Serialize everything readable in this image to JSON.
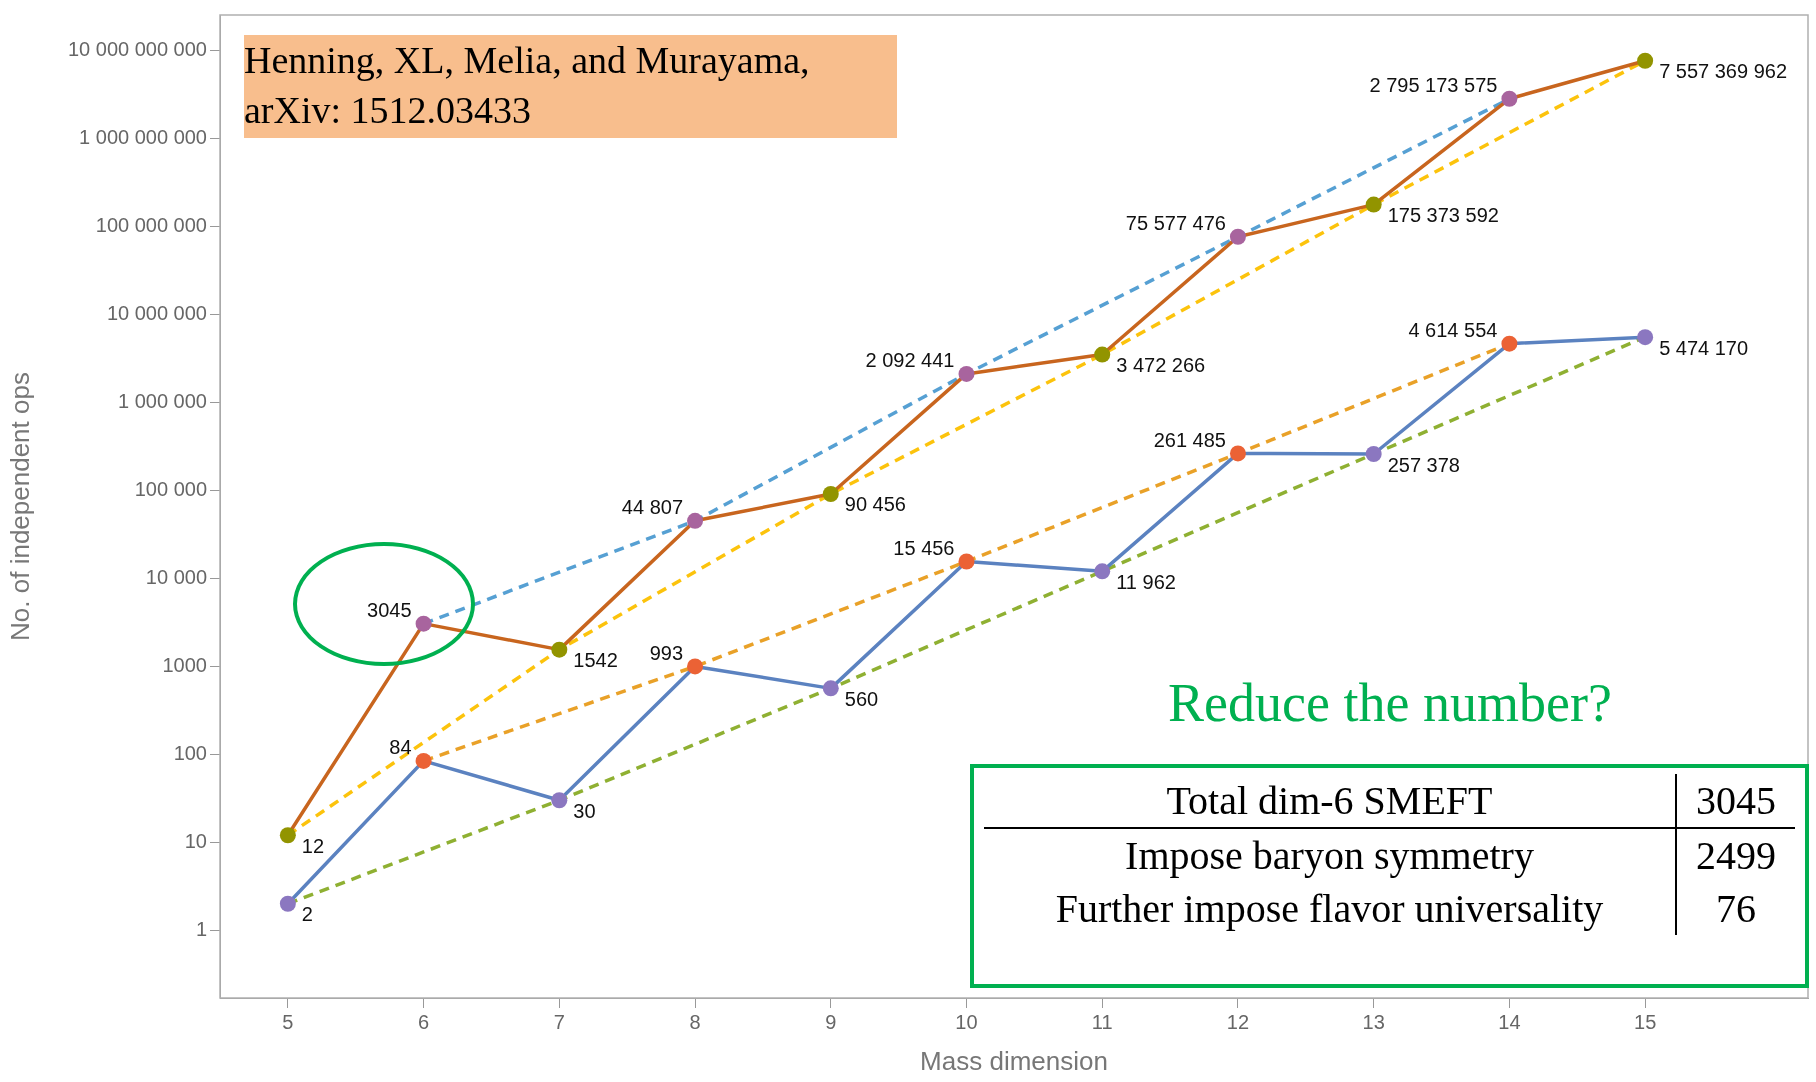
{
  "chart_data": {
    "type": "line",
    "xlabel": "Mass dimension",
    "ylabel": "No. of independent ops",
    "log": "y",
    "xlim": [
      4.5,
      16.2
    ],
    "xticks": [
      5,
      6,
      7,
      8,
      9,
      10,
      11,
      12,
      13,
      14,
      15
    ],
    "ylim": [
      0.17,
      25000000000
    ],
    "yticks": [
      1,
      10,
      100,
      1000,
      {
        "value": 10000,
        "label": "10 000"
      },
      {
        "value": 100000,
        "label": "100 000"
      },
      {
        "value": 1000000,
        "label": "1 000 000"
      },
      {
        "value": 10000000,
        "label": "10 000 000"
      },
      {
        "value": 100000000,
        "label": "100 000 000"
      },
      {
        "value": 1000000000,
        "label": "1 000 000 000"
      },
      {
        "value": 10000000000,
        "label": "10 000 000 000"
      }
    ],
    "marker": "circle",
    "series": [
      {
        "x": [
          6,
          8,
          10,
          12,
          14
        ],
        "values": [
          3045,
          44807,
          2092441,
          75577476,
          2795173575
        ],
        "color": "#56a0d3",
        "line_style": "dashed",
        "marker": "none"
      },
      {
        "x": [
          5,
          7,
          9,
          11,
          13,
          15
        ],
        "values": [
          12,
          1542,
          90456,
          3472266,
          175373592,
          7557369962
        ],
        "color": "#fcc30c",
        "line_style": "dashed",
        "marker": "none"
      },
      {
        "x": [
          6,
          8,
          10,
          12,
          14
        ],
        "values": [
          84,
          993,
          15456,
          261485,
          4614554
        ],
        "color": "#e9a128",
        "line_style": "dashed",
        "marker": "none"
      },
      {
        "x": [
          5,
          7,
          9,
          11,
          13,
          15
        ],
        "values": [
          2,
          30,
          560,
          11962,
          257378,
          5474170
        ],
        "color": "#8fb032",
        "line_style": "dashed",
        "marker": "none"
      },
      {
        "x": [
          5,
          6,
          7,
          8,
          9,
          10,
          11,
          12,
          13,
          14,
          15
        ],
        "values": [
          12,
          3045,
          1542,
          44807,
          90456,
          2092441,
          3472266,
          75577476,
          175373592,
          2795173575,
          7557369962
        ],
        "color": "#c8651e",
        "colors": [
          "#929400",
          "#a8649e",
          "#929400",
          "#a8649e",
          "#929400",
          "#a8649e",
          "#929400",
          "#a8649e",
          "#929400",
          "#a8649e",
          "#929400"
        ],
        "value_labels": [
          "12",
          "3045",
          "1542",
          "44 807",
          "90 456",
          "2 092 441",
          "3 472 266",
          "75 577 476",
          "175 373 592",
          "2 795 173 575",
          "7 557 369 962"
        ]
      },
      {
        "x": [
          5,
          6,
          7,
          8,
          9,
          10,
          11,
          12,
          13,
          14,
          15
        ],
        "values": [
          2,
          84,
          30,
          993,
          560,
          15456,
          11962,
          261485,
          257378,
          4614554,
          5474170
        ],
        "color": "#5b82c0",
        "colors": [
          "#8b77c0",
          "#eb6235",
          "#8b77c0",
          "#eb6235",
          "#8b77c0",
          "#eb6235",
          "#8b77c0",
          "#eb6235",
          "#8b77c0",
          "#eb6235",
          "#8b77c0"
        ],
        "value_labels": [
          "2",
          "84",
          "30",
          "993",
          "560",
          "15 456",
          "11 962",
          "261 485",
          "257 378",
          "4 614 554",
          "5 474 170"
        ]
      }
    ],
    "annotations": [
      "Henning, XL, Melia, and Murayama, arXiv: 1512.03433",
      "Reduce the number?",
      "Total dim-6 SMEFT",
      "3045",
      "Impose baryon symmetry",
      "2499",
      "Further impose flavor universality",
      "76"
    ]
  }
}
